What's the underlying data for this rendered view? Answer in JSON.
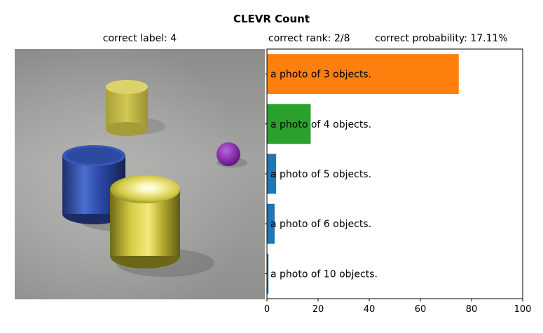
{
  "header": {
    "title": "CLEVR Count",
    "image_label": "correct label: 4",
    "rank_label": "correct rank: 2/8",
    "probability_label": "correct probability: 17.11%"
  },
  "scene": {
    "objects": [
      {
        "shape": "cylinder",
        "color": "#c9bf4a",
        "material": "rubber",
        "name": "small-yellow-cylinder"
      },
      {
        "shape": "cylinder",
        "color": "#2f4fa8",
        "material": "metal",
        "name": "blue-metal-cylinder"
      },
      {
        "shape": "cylinder",
        "color": "#c6bd36",
        "material": "metal",
        "name": "large-yellow-metal-cylinder"
      },
      {
        "shape": "sphere",
        "color": "#8b2fb0",
        "material": "rubber",
        "name": "purple-sphere"
      }
    ]
  },
  "chart_data": {
    "type": "bar",
    "orientation": "horizontal",
    "categories": [
      "a photo of 3 objects.",
      "a photo of 4 objects.",
      "a photo of 5 objects.",
      "a photo of 6 objects.",
      "a photo of 10 objects."
    ],
    "values": [
      75.0,
      17.11,
      3.6,
      3.0,
      0.6
    ],
    "colors": [
      "#ff7f0e",
      "#2ca02c",
      "#1f77b4",
      "#1f77b4",
      "#1f77b4"
    ],
    "xlim": [
      0,
      100
    ],
    "xticks": [
      0,
      20,
      40,
      60,
      80,
      100
    ],
    "grid": false
  }
}
